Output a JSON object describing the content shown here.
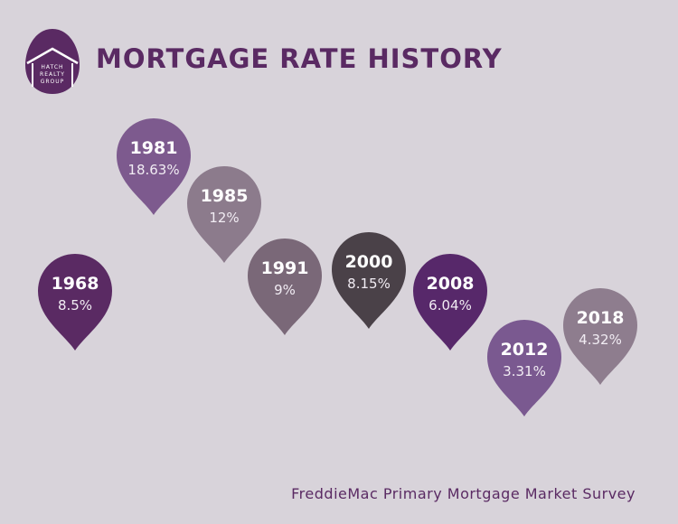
{
  "logo": {
    "lines": [
      "HATCH",
      "REALTY",
      "GROUP"
    ]
  },
  "title": "MORTGAGE RATE HISTORY",
  "items": [
    {
      "year": "1968",
      "rate": "8.5%",
      "color": "#5a2a63"
    },
    {
      "year": "1981",
      "rate": "18.63%",
      "color": "#7d5a8e"
    },
    {
      "year": "1985",
      "rate": "12%",
      "color": "#8c7b8c"
    },
    {
      "year": "1991",
      "rate": "9%",
      "color": "#7a6878"
    },
    {
      "year": "2000",
      "rate": "8.15%",
      "color": "#4a4148"
    },
    {
      "year": "2008",
      "rate": "6.04%",
      "color": "#57286a"
    },
    {
      "year": "2012",
      "rate": "3.31%",
      "color": "#7a5990"
    },
    {
      "year": "2018",
      "rate": "4.32%",
      "color": "#8e7d8e"
    }
  ],
  "source": "FreddieMac Primary Mortgage Market Survey"
}
